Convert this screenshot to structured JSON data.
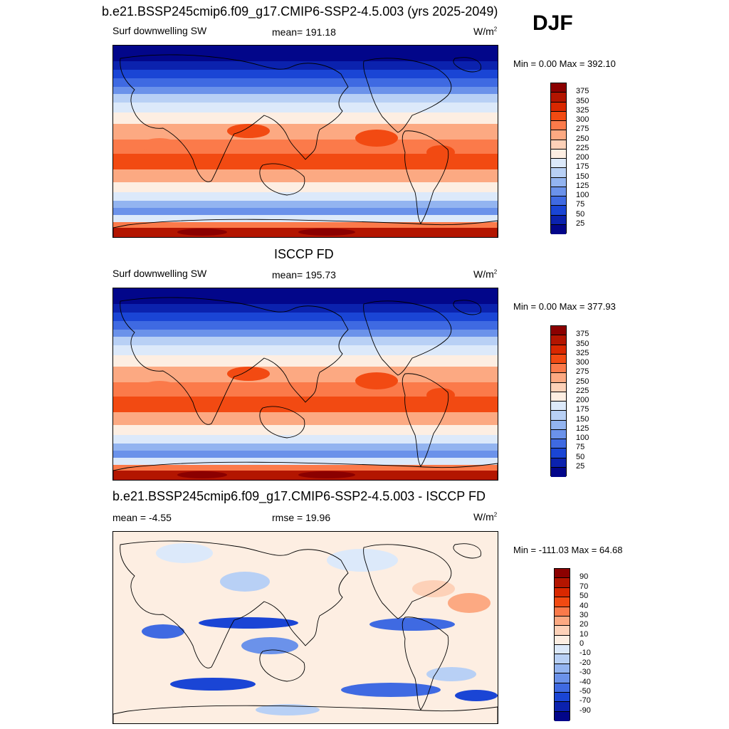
{
  "header": {
    "title": "b.e21.BSSP245cmip6.f09_g17.CMIP6-SSP2-4.5.003 (yrs 2025-2049)",
    "season": "DJF"
  },
  "panels": [
    {
      "title": "",
      "left_label": "Surf downwelling SW",
      "center_label": "mean= 191.18",
      "units": "W/m",
      "units_sup": "2",
      "minmax": "Min =   0.00 Max = 392.10",
      "colorbar": "abs"
    },
    {
      "title": "ISCCP FD",
      "left_label": "Surf downwelling SW",
      "center_label": "mean= 195.73",
      "units": "W/m",
      "units_sup": "2",
      "minmax": "Min =   0.00 Max = 377.93",
      "colorbar": "abs"
    },
    {
      "title": "b.e21.BSSP245cmip6.f09_g17.CMIP6-SSP2-4.5.003 - ISCCP FD",
      "left_label": "mean =  -4.55",
      "center_label": "rmse =  19.96",
      "units": "W/m",
      "units_sup": "2",
      "minmax": "Min = -111.03 Max =  64.68",
      "colorbar": "diff"
    }
  ],
  "chart_data": [
    {
      "type": "heatmap",
      "variable": "Surf downwelling SW",
      "mean": 191.18,
      "min": 0.0,
      "max": 392.1,
      "colorbar_levels": [
        "375",
        "350",
        "325",
        "300",
        "275",
        "250",
        "225",
        "200",
        "175",
        "150",
        "125",
        "100",
        "75",
        "50",
        "25"
      ],
      "colorbar_colors": [
        "#8b0000",
        "#b31500",
        "#d92800",
        "#f24a12",
        "#fb7a4a",
        "#fca982",
        "#fdd1b8",
        "#fdeee2",
        "#dce9fa",
        "#b8d0f5",
        "#93b4f0",
        "#6b92ea",
        "#3f6ae2",
        "#1a45d5",
        "#0b22ae",
        "#02068a"
      ]
    },
    {
      "type": "heatmap",
      "variable": "Surf downwelling SW",
      "mean": 195.73,
      "min": 0.0,
      "max": 377.93,
      "colorbar_levels": [
        "375",
        "350",
        "325",
        "300",
        "275",
        "250",
        "225",
        "200",
        "175",
        "150",
        "125",
        "100",
        "75",
        "50",
        "25"
      ],
      "colorbar_colors": [
        "#8b0000",
        "#b31500",
        "#d92800",
        "#f24a12",
        "#fb7a4a",
        "#fca982",
        "#fdd1b8",
        "#fdeee2",
        "#dce9fa",
        "#b8d0f5",
        "#93b4f0",
        "#6b92ea",
        "#3f6ae2",
        "#1a45d5",
        "#0b22ae",
        "#02068a"
      ]
    },
    {
      "type": "heatmap",
      "mean": -4.55,
      "rmse": 19.96,
      "min": -111.03,
      "max": 64.68,
      "colorbar_levels": [
        "90",
        "70",
        "50",
        "40",
        "30",
        "20",
        "10",
        "0",
        "-10",
        "-20",
        "-30",
        "-40",
        "-50",
        "-70",
        "-90"
      ],
      "colorbar_colors": [
        "#8b0000",
        "#b31500",
        "#d92800",
        "#f24a12",
        "#fb7a4a",
        "#fca982",
        "#fdd1b8",
        "#fdeee2",
        "#dce9fa",
        "#b8d0f5",
        "#93b4f0",
        "#6b92ea",
        "#3f6ae2",
        "#1a45d5",
        "#0b22ae",
        "#02068a"
      ]
    }
  ]
}
